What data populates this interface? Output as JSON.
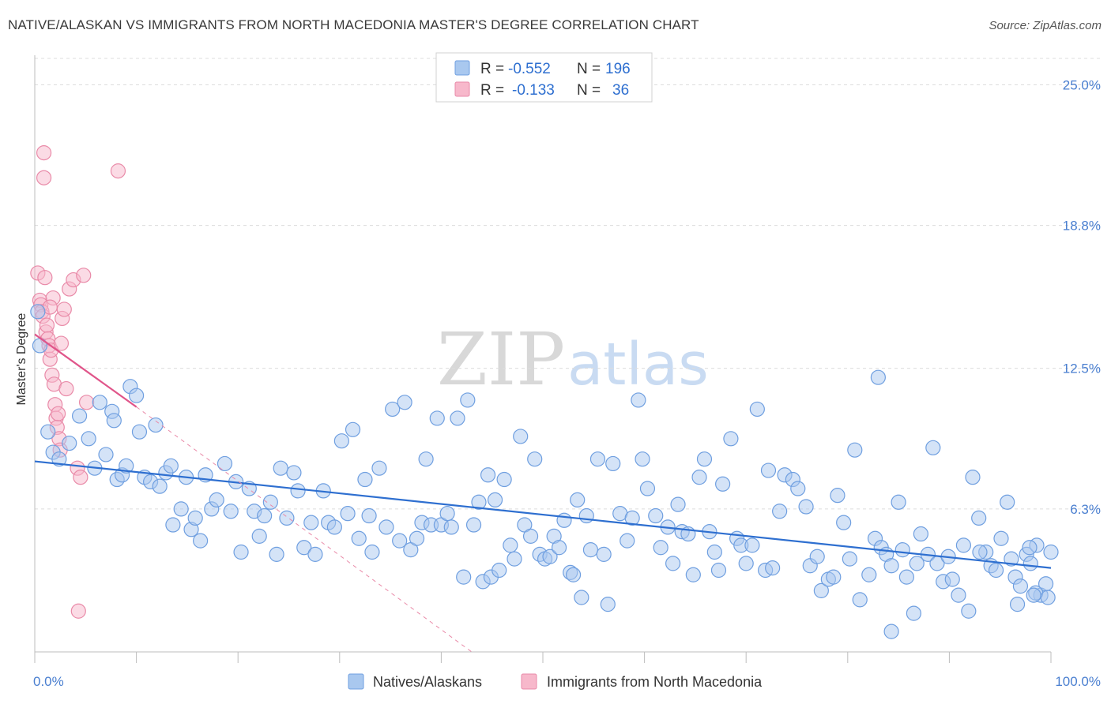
{
  "header": {
    "title": "NATIVE/ALASKAN VS IMMIGRANTS FROM NORTH MACEDONIA MASTER'S DEGREE CORRELATION CHART",
    "source": "Source: ZipAtlas.com"
  },
  "watermark": {
    "zip": "ZIP",
    "atlas": "atlas"
  },
  "colors": {
    "blue_fill": "#a9c8ef",
    "blue_stroke": "#6f9fe0",
    "blue_line": "#2e6fd0",
    "pink_fill": "#f7b8cb",
    "pink_stroke": "#e98aa8",
    "pink_line": "#e0558a",
    "tick_text": "#4a7fd0",
    "grid": "#dcdcdc"
  },
  "legend": {
    "row1": {
      "r_label": "R =",
      "r_value": "-0.552",
      "n_label": "N =",
      "n_value": "196"
    },
    "row2": {
      "r_label": "R =",
      "r_value": "-0.133",
      "n_label": "N =",
      "n_value": "36"
    }
  },
  "chart_data": {
    "type": "scatter",
    "title": "NATIVE/ALASKAN VS IMMIGRANTS FROM NORTH MACEDONIA MASTER'S DEGREE CORRELATION CHART",
    "xlabel": "",
    "ylabel": "Master's Degree",
    "xlim": [
      0,
      100
    ],
    "ylim": [
      0,
      26.3
    ],
    "x_tick_labels": [
      "0.0%",
      "100.0%"
    ],
    "y_ticks": [
      6.3,
      12.5,
      18.8,
      25.0
    ],
    "y_tick_labels": [
      "6.3%",
      "12.5%",
      "18.8%",
      "25.0%"
    ],
    "legend_position": "top-center",
    "series": [
      {
        "name": "Natives/Alaskans",
        "color": "#a9c8ef",
        "trend": {
          "x": [
            0,
            100
          ],
          "y": [
            8.4,
            3.7
          ]
        },
        "points": [
          [
            0.3,
            15.0
          ],
          [
            0.5,
            13.5
          ],
          [
            1.3,
            9.7
          ],
          [
            1.8,
            8.8
          ],
          [
            2.4,
            8.5
          ],
          [
            3.4,
            9.2
          ],
          [
            4.4,
            10.4
          ],
          [
            5.3,
            9.4
          ],
          [
            5.9,
            8.1
          ],
          [
            6.4,
            11.0
          ],
          [
            7.0,
            8.7
          ],
          [
            7.6,
            10.6
          ],
          [
            7.8,
            10.2
          ],
          [
            8.1,
            7.6
          ],
          [
            8.6,
            7.8
          ],
          [
            9.0,
            8.2
          ],
          [
            9.4,
            11.7
          ],
          [
            10.0,
            11.3
          ],
          [
            10.3,
            9.7
          ],
          [
            10.8,
            7.7
          ],
          [
            11.4,
            7.5
          ],
          [
            11.9,
            10.0
          ],
          [
            12.3,
            7.3
          ],
          [
            12.9,
            7.9
          ],
          [
            13.4,
            8.2
          ],
          [
            13.6,
            5.6
          ],
          [
            14.4,
            6.3
          ],
          [
            14.9,
            7.7
          ],
          [
            15.4,
            5.4
          ],
          [
            15.8,
            5.9
          ],
          [
            16.3,
            4.9
          ],
          [
            16.8,
            7.8
          ],
          [
            17.4,
            6.3
          ],
          [
            17.9,
            6.7
          ],
          [
            18.7,
            8.3
          ],
          [
            19.3,
            6.2
          ],
          [
            19.8,
            7.5
          ],
          [
            20.3,
            4.4
          ],
          [
            21.1,
            7.2
          ],
          [
            21.6,
            6.2
          ],
          [
            22.1,
            5.1
          ],
          [
            22.6,
            6.0
          ],
          [
            23.2,
            6.6
          ],
          [
            23.8,
            4.3
          ],
          [
            24.2,
            8.1
          ],
          [
            24.8,
            5.9
          ],
          [
            25.5,
            7.9
          ],
          [
            25.9,
            7.1
          ],
          [
            26.5,
            4.6
          ],
          [
            27.2,
            5.7
          ],
          [
            27.6,
            4.3
          ],
          [
            28.4,
            7.1
          ],
          [
            28.9,
            5.7
          ],
          [
            29.5,
            5.5
          ],
          [
            30.2,
            9.3
          ],
          [
            30.8,
            6.1
          ],
          [
            31.3,
            9.8
          ],
          [
            31.9,
            5.0
          ],
          [
            32.5,
            7.6
          ],
          [
            32.9,
            6.0
          ],
          [
            33.2,
            4.4
          ],
          [
            33.9,
            8.1
          ],
          [
            34.6,
            5.5
          ],
          [
            35.2,
            10.7
          ],
          [
            35.9,
            4.9
          ],
          [
            36.4,
            11.0
          ],
          [
            37.0,
            4.5
          ],
          [
            37.6,
            5.0
          ],
          [
            38.1,
            5.7
          ],
          [
            38.5,
            8.5
          ],
          [
            39.0,
            5.6
          ],
          [
            39.6,
            10.3
          ],
          [
            40.0,
            5.6
          ],
          [
            40.6,
            6.1
          ],
          [
            41.0,
            5.5
          ],
          [
            41.6,
            10.3
          ],
          [
            42.2,
            3.3
          ],
          [
            42.6,
            11.1
          ],
          [
            43.2,
            5.6
          ],
          [
            43.7,
            6.6
          ],
          [
            44.1,
            3.1
          ],
          [
            44.6,
            7.8
          ],
          [
            44.9,
            3.3
          ],
          [
            45.3,
            6.7
          ],
          [
            45.7,
            3.6
          ],
          [
            46.2,
            7.6
          ],
          [
            46.8,
            4.7
          ],
          [
            47.2,
            4.1
          ],
          [
            47.8,
            9.5
          ],
          [
            48.2,
            5.6
          ],
          [
            48.8,
            5.1
          ],
          [
            49.2,
            8.5
          ],
          [
            49.7,
            4.3
          ],
          [
            50.2,
            4.1
          ],
          [
            50.7,
            4.2
          ],
          [
            51.1,
            5.1
          ],
          [
            51.6,
            4.6
          ],
          [
            52.1,
            5.8
          ],
          [
            52.7,
            3.5
          ],
          [
            53.0,
            3.4
          ],
          [
            53.4,
            6.7
          ],
          [
            53.8,
            2.4
          ],
          [
            54.3,
            6.0
          ],
          [
            54.7,
            4.5
          ],
          [
            55.4,
            8.5
          ],
          [
            56.0,
            4.3
          ],
          [
            56.4,
            2.1
          ],
          [
            56.9,
            8.3
          ],
          [
            57.6,
            6.1
          ],
          [
            58.3,
            4.9
          ],
          [
            58.8,
            5.9
          ],
          [
            59.4,
            11.1
          ],
          [
            59.8,
            8.5
          ],
          [
            60.3,
            7.2
          ],
          [
            61.1,
            6.0
          ],
          [
            61.6,
            4.6
          ],
          [
            62.3,
            5.5
          ],
          [
            62.8,
            3.9
          ],
          [
            63.3,
            6.5
          ],
          [
            63.7,
            5.3
          ],
          [
            64.3,
            5.2
          ],
          [
            64.8,
            3.4
          ],
          [
            65.4,
            7.7
          ],
          [
            65.9,
            8.5
          ],
          [
            66.4,
            5.3
          ],
          [
            66.9,
            4.4
          ],
          [
            67.3,
            3.6
          ],
          [
            67.7,
            7.4
          ],
          [
            68.5,
            9.4
          ],
          [
            69.1,
            5.0
          ],
          [
            69.5,
            4.7
          ],
          [
            70.0,
            3.9
          ],
          [
            70.6,
            4.7
          ],
          [
            71.1,
            10.7
          ],
          [
            71.9,
            3.6
          ],
          [
            72.2,
            8.0
          ],
          [
            72.6,
            3.7
          ],
          [
            73.3,
            6.2
          ],
          [
            73.8,
            7.8
          ],
          [
            74.6,
            7.6
          ],
          [
            75.1,
            7.2
          ],
          [
            75.9,
            6.4
          ],
          [
            76.3,
            3.8
          ],
          [
            77.0,
            4.2
          ],
          [
            77.4,
            2.7
          ],
          [
            78.1,
            3.2
          ],
          [
            78.6,
            3.3
          ],
          [
            79.0,
            6.9
          ],
          [
            79.6,
            5.7
          ],
          [
            80.2,
            4.1
          ],
          [
            80.7,
            8.9
          ],
          [
            81.2,
            2.3
          ],
          [
            82.1,
            3.4
          ],
          [
            82.7,
            5.0
          ],
          [
            83.3,
            4.6
          ],
          [
            83.8,
            4.3
          ],
          [
            84.3,
            3.8
          ],
          [
            85.0,
            6.6
          ],
          [
            85.4,
            4.5
          ],
          [
            85.8,
            3.3
          ],
          [
            86.8,
            3.9
          ],
          [
            87.2,
            5.2
          ],
          [
            87.9,
            4.3
          ],
          [
            88.4,
            9.0
          ],
          [
            88.8,
            3.9
          ],
          [
            89.4,
            3.1
          ],
          [
            89.9,
            4.2
          ],
          [
            90.3,
            3.2
          ],
          [
            90.9,
            2.5
          ],
          [
            91.4,
            4.7
          ],
          [
            91.9,
            1.8
          ],
          [
            92.3,
            7.7
          ],
          [
            92.9,
            5.9
          ],
          [
            93.6,
            4.4
          ],
          [
            94.1,
            3.8
          ],
          [
            94.6,
            3.6
          ],
          [
            95.1,
            5.0
          ],
          [
            95.7,
            6.6
          ],
          [
            96.1,
            4.1
          ],
          [
            96.5,
            3.3
          ],
          [
            97.0,
            2.9
          ],
          [
            97.6,
            4.3
          ],
          [
            98.0,
            3.9
          ],
          [
            98.6,
            4.7
          ],
          [
            99.0,
            2.5
          ],
          [
            99.5,
            3.0
          ],
          [
            100.0,
            4.4
          ],
          [
            97.9,
            4.6
          ],
          [
            98.5,
            2.6
          ],
          [
            99.7,
            2.4
          ],
          [
            98.3,
            2.5
          ],
          [
            86.5,
            1.7
          ],
          [
            96.7,
            2.1
          ],
          [
            84.3,
            0.9
          ],
          [
            83.0,
            12.1
          ],
          [
            93.0,
            4.4
          ]
        ]
      },
      {
        "name": "Immigrants from North Macedonia",
        "color": "#f7b8cb",
        "trend": {
          "x": [
            0,
            10
          ],
          "y": [
            14.0,
            10.8
          ]
        },
        "trend_extension": {
          "x": [
            10,
            43
          ],
          "y": [
            10.8,
            0.0
          ]
        },
        "points": [
          [
            0.3,
            16.7
          ],
          [
            0.5,
            15.5
          ],
          [
            0.6,
            15.3
          ],
          [
            0.7,
            15.0
          ],
          [
            0.8,
            14.8
          ],
          [
            0.9,
            22.0
          ],
          [
            0.9,
            20.9
          ],
          [
            1.0,
            16.5
          ],
          [
            1.1,
            14.1
          ],
          [
            1.2,
            14.4
          ],
          [
            1.3,
            13.8
          ],
          [
            1.4,
            13.5
          ],
          [
            1.5,
            12.9
          ],
          [
            1.6,
            13.3
          ],
          [
            1.7,
            12.2
          ],
          [
            1.8,
            15.6
          ],
          [
            1.9,
            11.8
          ],
          [
            2.0,
            10.9
          ],
          [
            2.1,
            10.3
          ],
          [
            2.2,
            9.9
          ],
          [
            2.3,
            10.5
          ],
          [
            2.4,
            9.4
          ],
          [
            1.5,
            15.2
          ],
          [
            2.5,
            8.9
          ],
          [
            2.6,
            13.6
          ],
          [
            2.7,
            14.7
          ],
          [
            2.9,
            15.1
          ],
          [
            3.1,
            11.6
          ],
          [
            3.4,
            16.0
          ],
          [
            3.8,
            16.4
          ],
          [
            4.2,
            8.1
          ],
          [
            4.5,
            7.7
          ],
          [
            4.8,
            16.6
          ],
          [
            5.1,
            11.0
          ],
          [
            8.2,
            21.2
          ],
          [
            4.3,
            1.8
          ]
        ]
      }
    ]
  },
  "bottom_legend": {
    "item1": "Natives/Alaskans",
    "item2": "Immigrants from North Macedonia"
  }
}
